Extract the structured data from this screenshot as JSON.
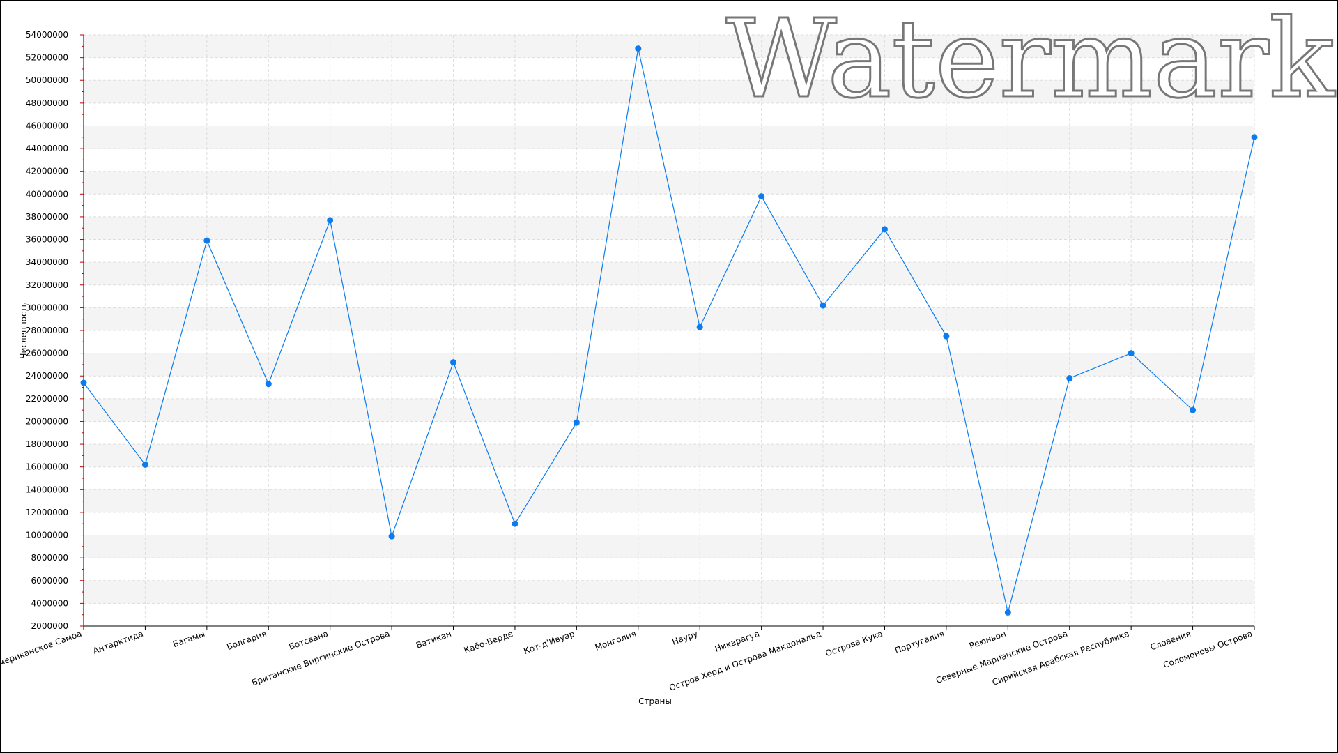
{
  "watermark": "Watermark",
  "colors": {
    "line": "#0a7cf0",
    "marker": "#0a7cf0",
    "band": "#f4f4f4",
    "grid": "#dddddd",
    "tick": "#c00000"
  },
  "chart_data": {
    "type": "line",
    "xlabel": "Страны",
    "ylabel": "Численность",
    "ylim": [
      2000000,
      54000000
    ],
    "ystep": 2000000,
    "grid": true,
    "categories": [
      "Американское Самоа",
      "Антарктида",
      "Багамы",
      "Болгария",
      "Ботсвана",
      "Британские Виргинские Острова",
      "Ватикан",
      "Кабо-Верде",
      "Кот-д'Ивуар",
      "Монголия",
      "Науру",
      "Никарагуа",
      "Остров Херд и Острова Макдональд",
      "Острова Кука",
      "Португалия",
      "Реюньон",
      "Северные Марианские Острова",
      "Сирийская Арабская Республика",
      "Словения",
      "Соломоновы Острова"
    ],
    "series": [
      {
        "values": [
          23400000,
          16200000,
          35900000,
          23300000,
          37700000,
          9900000,
          25200000,
          11000000,
          19900000,
          52800000,
          28300000,
          39800000,
          30200000,
          36900000,
          27500000,
          3200000,
          23800000,
          26000000,
          21000000,
          45000000
        ]
      }
    ]
  }
}
